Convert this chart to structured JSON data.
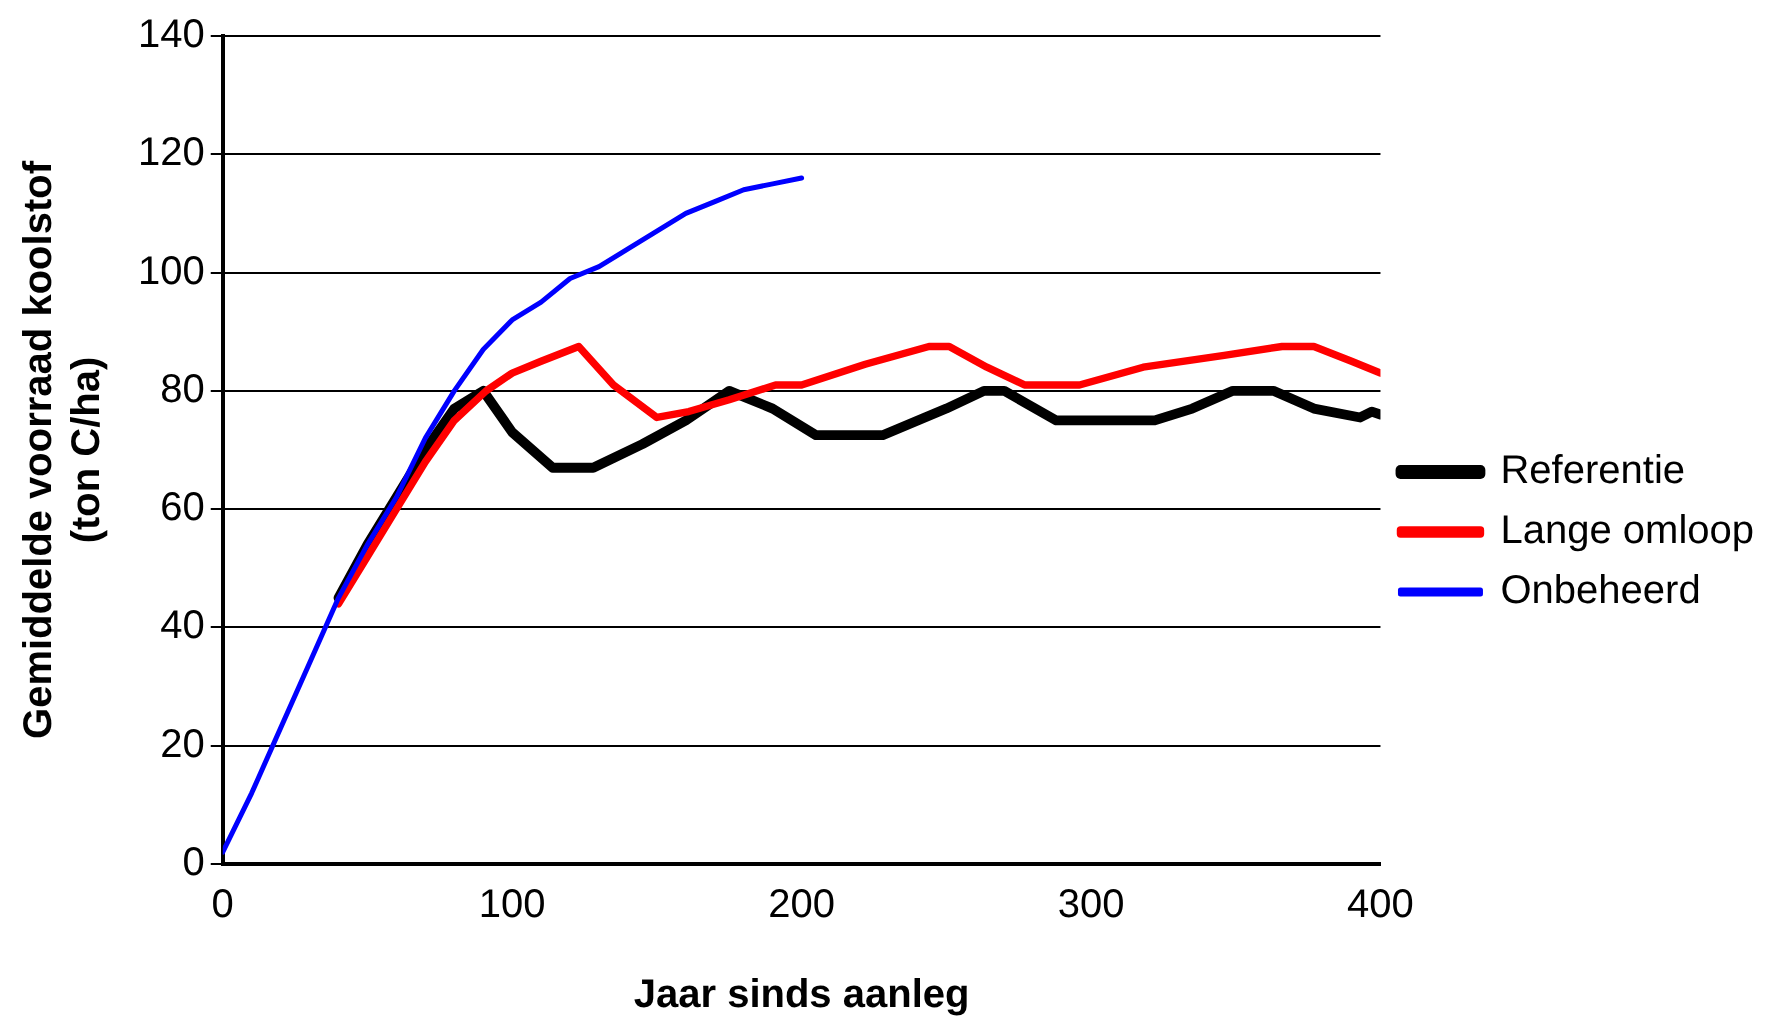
{
  "chart_data": {
    "type": "line",
    "xlabel": "Jaar sinds aanleg",
    "ylabel": "Gemiddelde voorraad koolstof\n(ton C/ha)",
    "xlim": [
      0,
      400
    ],
    "xticks": [
      0,
      100,
      200,
      300,
      400
    ],
    "ylim": [
      0,
      140
    ],
    "yticks": [
      0,
      20,
      40,
      60,
      80,
      100,
      120,
      140
    ],
    "grid": "y",
    "legend": "right",
    "marker": "none",
    "line_style": "solid",
    "series": [
      {
        "name": "Referentie",
        "color": "#000000",
        "x": [
          40,
          50,
          60,
          70,
          80,
          90,
          100,
          114,
          128,
          145,
          160,
          175,
          190,
          205,
          228,
          250,
          263,
          270,
          288,
          322,
          335,
          349,
          363,
          377,
          393,
          397,
          400
        ],
        "values": [
          45,
          54,
          62,
          70,
          77,
          80,
          73,
          67,
          67,
          71,
          75,
          80,
          77,
          72.5,
          72.5,
          77,
          80,
          80,
          75,
          75,
          77,
          80,
          80,
          77,
          75.5,
          76.5,
          76
        ]
      },
      {
        "name": "Lange omloop",
        "color": "#ff0000",
        "x": [
          40,
          50,
          60,
          70,
          80,
          91,
          100,
          110,
          123,
          135,
          150,
          161,
          175,
          191,
          200,
          222,
          244,
          251,
          264,
          277,
          296,
          318,
          346,
          366,
          377,
          390,
          400
        ],
        "values": [
          44,
          52,
          60,
          68,
          75,
          80,
          83,
          85,
          87.5,
          81,
          75.5,
          76.5,
          78.5,
          81,
          81,
          84.5,
          87.5,
          87.5,
          84,
          81,
          81,
          84,
          86,
          87.5,
          87.5,
          85,
          83
        ]
      },
      {
        "name": "Onbeheerd",
        "color": "#0000ff",
        "x": [
          0,
          10,
          20,
          30,
          40,
          50,
          60,
          70,
          80,
          90,
          100,
          110,
          120,
          130,
          140,
          150,
          160,
          170,
          180,
          190,
          200
        ],
        "values": [
          2,
          12,
          23,
          34,
          45,
          54,
          62,
          72,
          80,
          87,
          92,
          95,
          99,
          101,
          104,
          107,
          110,
          112,
          114,
          115,
          116
        ]
      }
    ]
  }
}
